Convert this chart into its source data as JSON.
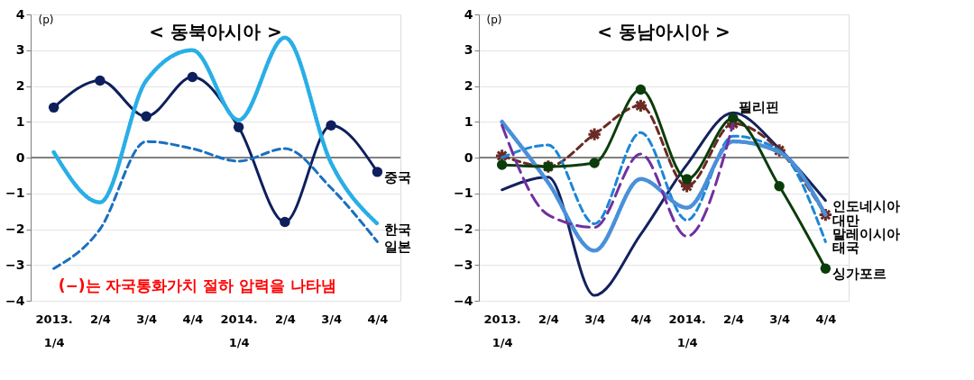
{
  "chart_data": [
    {
      "type": "line",
      "title": "< 동북아시아 >",
      "ylabel": "(p)",
      "categories": [
        "2013.\n1/4",
        "2/4",
        "3/4",
        "4/4",
        "2014.\n1/4",
        "2/4",
        "3/4",
        "4/4"
      ],
      "ylim": [
        -4,
        4
      ],
      "yticks": [
        -4,
        -3,
        -2,
        -1,
        0,
        1,
        2,
        3,
        4
      ],
      "grid": "y",
      "ref_lines": [
        {
          "axis": "y",
          "value": 0,
          "color": "#808080"
        }
      ],
      "annotations": [
        "(−)는 자국통화가치 절하 압력을 나타냄"
      ],
      "series": [
        {
          "name": "중국",
          "color": "#0d1f5c",
          "marker": "circle",
          "line_style": "solid",
          "values": [
            1.4,
            2.15,
            1.15,
            2.25,
            0.85,
            -1.8,
            0.9,
            -0.4
          ]
        },
        {
          "name": "한국",
          "color": "#29aee6",
          "marker": "none",
          "line_style": "dotted",
          "values": [
            0.15,
            -1.25,
            2.15,
            3.0,
            1.05,
            3.35,
            -0.15,
            -1.85
          ]
        },
        {
          "name": "일본",
          "color": "#1a6fc0",
          "marker": "none",
          "line_style": "dashed",
          "values": [
            -3.1,
            -2.0,
            0.45,
            0.25,
            -0.1,
            0.25,
            -0.85,
            -2.35
          ]
        }
      ]
    },
    {
      "type": "line",
      "title": "< 동남아시아 >",
      "ylabel": "(p)",
      "categories": [
        "2013.\n1/4",
        "2/4",
        "3/4",
        "4/4",
        "2014.\n1/4",
        "2/4",
        "3/4",
        "4/4"
      ],
      "ylim": [
        -4,
        4
      ],
      "yticks": [
        -4,
        -3,
        -2,
        -1,
        0,
        1,
        2,
        3,
        4
      ],
      "grid": "y",
      "ref_lines": [
        {
          "axis": "y",
          "value": 0,
          "color": "#808080"
        }
      ],
      "series": [
        {
          "name": "인도네시아",
          "color": "#14215e",
          "marker": "none",
          "line_style": "solid",
          "values": [
            -0.9,
            -0.55,
            -3.85,
            -2.15,
            -0.2,
            1.25,
            0.25,
            -1.2
          ]
        },
        {
          "name": "대만",
          "color": "#6b2a24",
          "marker": "cross",
          "line_style": "dashed",
          "values": [
            0.05,
            -0.25,
            0.65,
            1.45,
            -0.8,
            0.95,
            0.2,
            -1.6
          ]
        },
        {
          "name": "태국",
          "color": "#1b86d6",
          "marker": "none",
          "line_style": "dashed",
          "values": [
            0.0,
            0.35,
            -1.85,
            0.7,
            -1.75,
            0.6,
            0.2,
            -2.35
          ]
        },
        {
          "name": "말레이시아",
          "color": "#4a90d9",
          "marker": "none",
          "line_style": "dotted",
          "values": [
            1.0,
            -0.7,
            -2.6,
            -0.6,
            -1.4,
            0.45,
            0.15,
            -1.6
          ]
        },
        {
          "name": "싱가포르",
          "color": "#0b3d0b",
          "marker": "circle",
          "line_style": "solid",
          "values": [
            -0.2,
            -0.25,
            -0.15,
            1.9,
            -0.6,
            1.1,
            -0.8,
            -3.1
          ]
        },
        {
          "name": "필리핀",
          "color": "#7030a0",
          "marker": "none",
          "line_style": "longdash",
          "values": [
            0.9,
            -1.6,
            -1.95,
            0.1,
            -2.2,
            0.95,
            null,
            null
          ]
        }
      ]
    }
  ]
}
